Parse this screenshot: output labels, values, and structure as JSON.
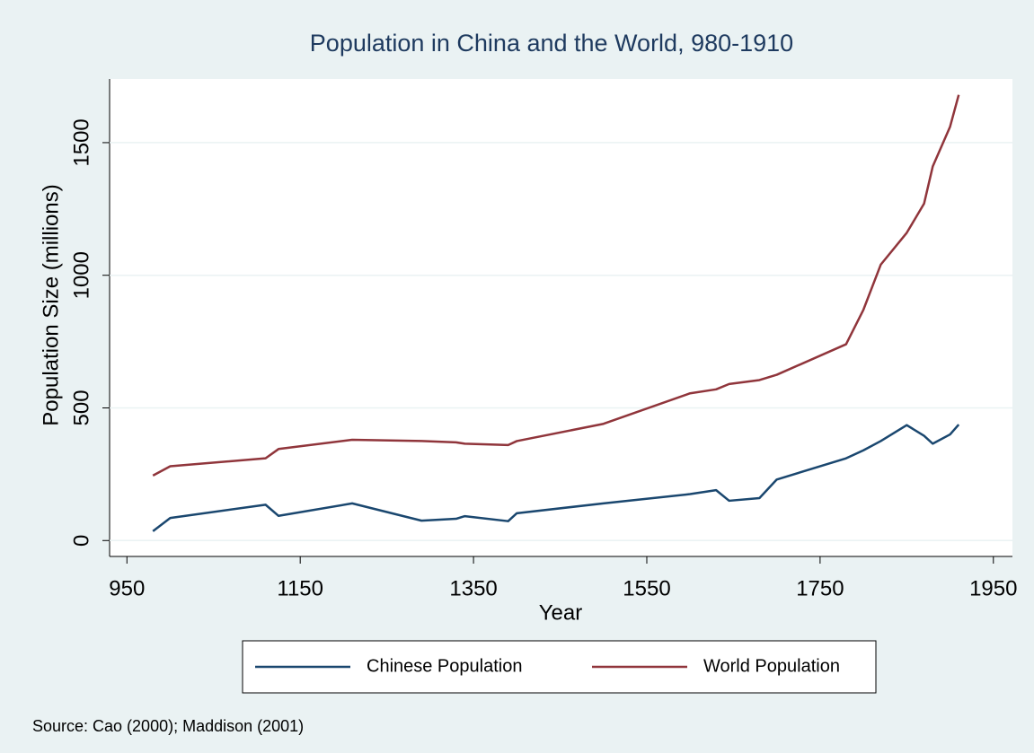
{
  "chart_data": {
    "type": "line",
    "title": "Population in China and the World, 980-1910",
    "x_label": "Year",
    "y_label": "Population Size (millions)",
    "note": "Source: Cao (2000); Maddison (2001)",
    "x": [
      980,
      1000,
      1110,
      1125,
      1210,
      1290,
      1330,
      1340,
      1390,
      1400,
      1500,
      1600,
      1630,
      1645,
      1680,
      1700,
      1780,
      1800,
      1820,
      1850,
      1870,
      1880,
      1900,
      1910
    ],
    "series": [
      {
        "name": "Chinese Population",
        "color": "#1a476f",
        "values": [
          35,
          85,
          135,
          93,
          140,
          75,
          82,
          92,
          73,
          103,
          140,
          175,
          190,
          150,
          160,
          230,
          310,
          340,
          375,
          435,
          395,
          365,
          400,
          437
        ]
      },
      {
        "name": "World Population",
        "color": "#90353b",
        "values": [
          245,
          280,
          310,
          345,
          380,
          375,
          370,
          365,
          360,
          375,
          440,
          555,
          570,
          590,
          605,
          625,
          740,
          870,
          1040,
          1160,
          1270,
          1410,
          1560,
          1680
        ]
      }
    ],
    "xlim": [
      930,
      1972
    ],
    "xticks": [
      950,
      1150,
      1350,
      1550,
      1750,
      1950
    ],
    "ylim": [
      -60,
      1740
    ],
    "yticks": [
      0,
      500,
      1000,
      1500
    ],
    "grid": true,
    "legend": "bottom"
  }
}
